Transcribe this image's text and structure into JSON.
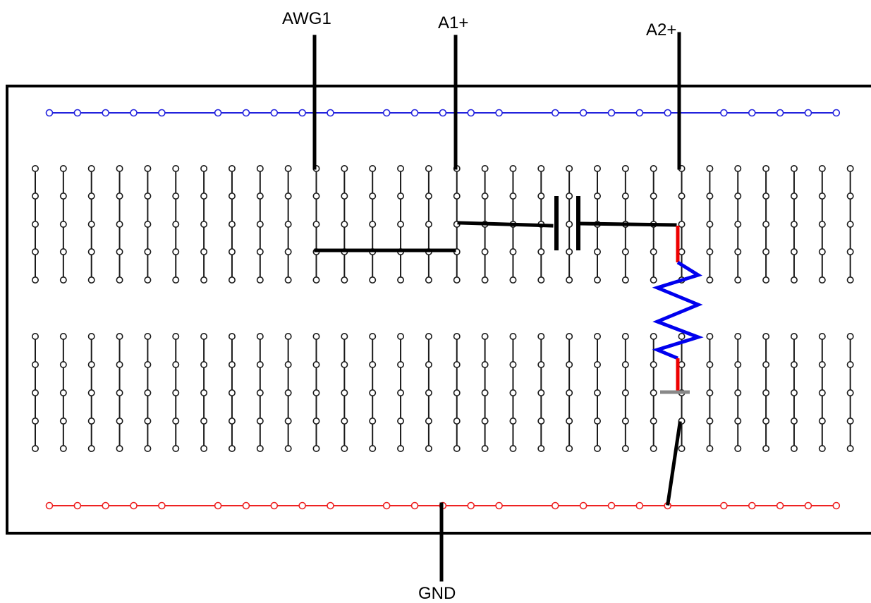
{
  "labels": {
    "awg1": "AWG1",
    "a1_plus": "A1+",
    "a2_plus": "A2+",
    "gnd": "GND"
  },
  "colors": {
    "board_outline": "#000000",
    "top_rail": "#2222dd",
    "bottom_rail": "#ee2222",
    "hole_strip": "#1a1a1a",
    "wire": "#000000",
    "resistor_body": "#0000ee",
    "resistor_lead": "#ee0000",
    "resistor_end": "#888888"
  },
  "components": {
    "capacitor": "capacitor",
    "resistor": "resistor"
  }
}
